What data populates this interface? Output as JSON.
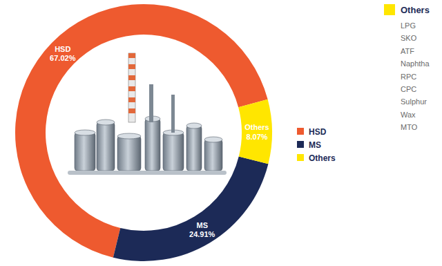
{
  "chart_data": {
    "type": "donut",
    "categories": [
      "HSD",
      "MS",
      "Others"
    ],
    "values": [
      67.02,
      24.91,
      8.07
    ],
    "value_labels": [
      "67.02%",
      "24.91%",
      "8.07%"
    ],
    "colors": [
      "#ee5a2f",
      "#1c2a57",
      "#ffe600"
    ],
    "data_labels": true,
    "legend": "right",
    "other_products": {
      "title": "Others",
      "items": [
        "LPG",
        "SKO",
        "ATF",
        "Naphtha",
        "RPC",
        "CPC",
        "Sulphur",
        "Wax",
        "MTO"
      ]
    }
  }
}
